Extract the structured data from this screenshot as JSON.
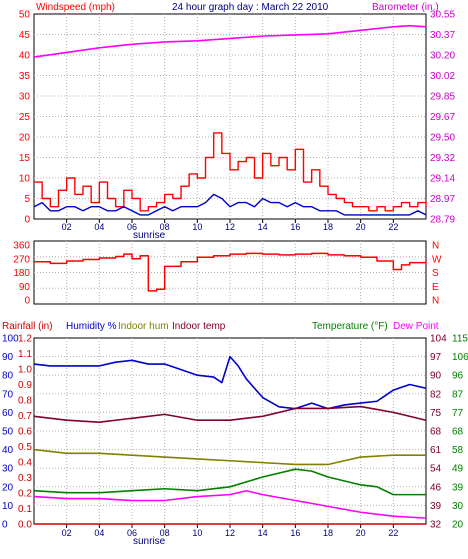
{
  "chart_data": [
    {
      "type": "line",
      "title": "24 hour graph day : March 22 2010",
      "left_axis_label": "Windspeed (mph)",
      "right_axis_label": "Barometer (in.)",
      "left_ticks": [
        "0",
        "5",
        "10",
        "15",
        "20",
        "25",
        "30",
        "35",
        "40",
        "45",
        "50"
      ],
      "left_range": [
        0,
        50
      ],
      "right_ticks": [
        "28.79",
        "28.97",
        "29.14",
        "29.32",
        "29.50",
        "29.67",
        "29.85",
        "30.02",
        "30.20",
        "30.37",
        "30.55"
      ],
      "right_range": [
        28.79,
        30.55
      ],
      "x_ticks": [
        "02",
        "04",
        "06",
        "08",
        "10",
        "12",
        "14",
        "16",
        "18",
        "20",
        "22"
      ],
      "sunrise_label": "sunrise",
      "colors": {
        "wind_gust": "#ff0000",
        "wind_avg": "#0000cc",
        "barometer": "#ff00ff",
        "left_axis": "#ff0000",
        "right_axis": "#cc00cc"
      },
      "series": [
        {
          "axis": "left",
          "style": "gust",
          "x": [
            0,
            0.5,
            1,
            1.5,
            2,
            2.5,
            3,
            3.5,
            4,
            4.5,
            5,
            5.5,
            6,
            6.5,
            7,
            7.5,
            8,
            8.5,
            9,
            9.5,
            10,
            10.5,
            11,
            11.5,
            12,
            12.5,
            13,
            13.5,
            14,
            14.5,
            15,
            15.5,
            16,
            16.5,
            17,
            17.5,
            18,
            18.5,
            19,
            19.5,
            20,
            20.5,
            21,
            21.5,
            22,
            22.5,
            23,
            23.5,
            24
          ],
          "values": [
            9,
            5,
            3,
            7,
            10,
            6,
            8,
            4,
            9,
            5,
            3,
            7,
            5,
            2,
            3,
            4,
            6,
            5,
            8,
            11,
            10,
            15,
            21,
            16,
            12,
            14,
            15,
            10,
            16,
            13,
            15,
            12,
            17,
            9,
            12,
            8,
            6,
            5,
            4,
            3,
            3,
            2,
            3,
            2,
            3,
            4,
            3,
            4,
            3
          ]
        },
        {
          "axis": "left",
          "style": "avg",
          "x": [
            0,
            0.5,
            1,
            1.5,
            2,
            2.5,
            3,
            3.5,
            4,
            4.5,
            5,
            5.5,
            6,
            6.5,
            7,
            7.5,
            8,
            8.5,
            9,
            9.5,
            10,
            10.5,
            11,
            11.5,
            12,
            12.5,
            13,
            13.5,
            14,
            14.5,
            15,
            15.5,
            16,
            16.5,
            17,
            17.5,
            18,
            18.5,
            19,
            19.5,
            20,
            20.5,
            21,
            21.5,
            22,
            22.5,
            23,
            23.5,
            24
          ],
          "values": [
            3,
            4,
            2,
            2,
            3,
            3,
            2,
            3,
            3,
            2,
            2,
            3,
            2,
            1,
            1,
            2,
            3,
            2,
            3,
            3,
            3,
            4,
            6,
            5,
            3,
            4,
            4,
            3,
            5,
            4,
            4,
            3,
            4,
            3,
            3,
            2,
            2,
            2,
            1,
            1,
            1,
            1,
            1,
            1,
            1,
            1,
            1,
            2,
            1
          ]
        },
        {
          "axis": "right",
          "style": "barometer",
          "x": [
            0,
            2,
            4,
            6,
            8,
            10,
            12,
            14,
            16,
            18,
            20,
            22,
            23,
            24
          ],
          "values": [
            30.18,
            30.22,
            30.26,
            30.29,
            30.31,
            30.32,
            30.34,
            30.36,
            30.37,
            30.38,
            30.41,
            30.44,
            30.45,
            30.44
          ]
        }
      ]
    },
    {
      "type": "line",
      "left_ticks": [
        "0",
        "90",
        "180",
        "270",
        "360"
      ],
      "left_range": [
        0,
        360
      ],
      "direction_labels": [
        "N",
        "W",
        "S",
        "E",
        "N"
      ],
      "colors": {
        "direction": "#ff0000",
        "axis": "#ff0000"
      },
      "series": [
        {
          "x": [
            0,
            1,
            2,
            3,
            4,
            5,
            5.5,
            6,
            6.5,
            7,
            7.5,
            8,
            9,
            10,
            11,
            12,
            13,
            14,
            15,
            16,
            17,
            18,
            19,
            20,
            21,
            22,
            22.5,
            23,
            24
          ],
          "values": [
            250,
            240,
            255,
            265,
            275,
            285,
            300,
            270,
            290,
            60,
            70,
            220,
            250,
            280,
            290,
            300,
            305,
            300,
            295,
            300,
            305,
            295,
            290,
            280,
            255,
            200,
            230,
            245,
            230
          ]
        }
      ]
    },
    {
      "type": "line",
      "legend": [
        "Rainfall (in)",
        "Humidity %",
        "Indoor hum",
        "Indoor temp",
        "Temperature (°F)",
        "Dew Point"
      ],
      "colors": {
        "rainfall": "#cc0000",
        "humidity": "#0000cc",
        "indoor_hum": "#808000",
        "indoor_temp": "#800030",
        "temperature": "#008000",
        "dew_point": "#ff00ff"
      },
      "rain_ticks": [
        "0.0",
        "0.1",
        "0.2",
        "0.3",
        "0.4",
        "0.5",
        "0.6",
        "0.7",
        "0.8",
        "0.9",
        "1.0",
        "1.1",
        "1.2"
      ],
      "rain_range": [
        0,
        1.2
      ],
      "percent_ticks": [
        "0",
        "10",
        "20",
        "30",
        "40",
        "50",
        "60",
        "70",
        "80",
        "90",
        "100"
      ],
      "percent_range": [
        0,
        100
      ],
      "temp_ticks_a": [
        "32",
        "39",
        "46",
        "54",
        "61",
        "68",
        "75",
        "82",
        "90",
        "97",
        "104"
      ],
      "temp_ticks_b": [
        "20",
        "30",
        "39",
        "49",
        "58",
        "68",
        "77",
        "87",
        "96",
        "106",
        "115"
      ],
      "temp_range": [
        20,
        115
      ],
      "x_ticks": [
        "02",
        "04",
        "06",
        "08",
        "10",
        "12",
        "14",
        "16",
        "18",
        "20",
        "22"
      ],
      "sunrise_label": "sunrise",
      "series": [
        {
          "name": "Rainfall (in)",
          "axis": "rain",
          "x": [
            0,
            24
          ],
          "values": [
            0.0,
            0.0
          ]
        },
        {
          "name": "Humidity %",
          "axis": "percent",
          "x": [
            0,
            1,
            2,
            3,
            4,
            5,
            6,
            7,
            8,
            9,
            10,
            11,
            11.5,
            12,
            12.5,
            13,
            14,
            15,
            16,
            17,
            18,
            19,
            20,
            21,
            22,
            23,
            24
          ],
          "values": [
            86,
            85,
            85,
            85,
            85,
            87,
            88,
            86,
            86,
            83,
            80,
            79,
            76,
            90,
            85,
            78,
            68,
            63,
            62,
            65,
            62,
            64,
            65,
            66,
            72,
            75,
            73
          ]
        },
        {
          "name": "Indoor hum",
          "axis": "percent",
          "x": [
            0,
            2,
            4,
            6,
            8,
            10,
            12,
            14,
            16,
            18,
            19,
            20,
            22,
            24
          ],
          "values": [
            40,
            38,
            38,
            37,
            36,
            35,
            34,
            33,
            32,
            32,
            34,
            36,
            37,
            37
          ]
        },
        {
          "name": "Indoor temp",
          "axis": "temp",
          "x": [
            0,
            2,
            4,
            6,
            8,
            10,
            12,
            14,
            16,
            18,
            20,
            22,
            24
          ],
          "values": [
            75,
            73,
            72,
            74,
            76,
            73,
            73,
            75,
            79,
            79,
            80,
            77,
            73
          ]
        },
        {
          "name": "Temperature (°F)",
          "axis": "temp",
          "x": [
            0,
            2,
            4,
            6,
            8,
            10,
            12,
            14,
            16,
            17,
            18,
            20,
            21,
            22,
            24
          ],
          "values": [
            37,
            36,
            36,
            37,
            38,
            37,
            39,
            44,
            48,
            47,
            44,
            40,
            39,
            35,
            35
          ]
        },
        {
          "name": "Dew Point",
          "axis": "temp",
          "x": [
            0,
            2,
            4,
            6,
            8,
            10,
            12,
            13,
            14,
            16,
            18,
            20,
            22,
            24
          ],
          "values": [
            34,
            33,
            33,
            32,
            32,
            34,
            35,
            37,
            35,
            32,
            29,
            26,
            24,
            23
          ]
        }
      ]
    }
  ]
}
